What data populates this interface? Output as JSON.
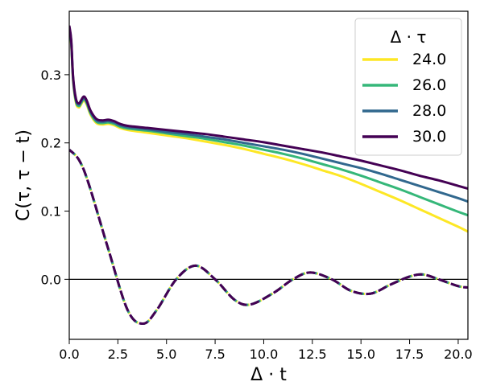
{
  "chart_data": {
    "type": "line",
    "xlabel": "Δ · t",
    "ylabel": "C(τ, τ − t)",
    "xlim": [
      0,
      20.5
    ],
    "ylim": [
      -0.088,
      0.393
    ],
    "xticks": [
      0.0,
      2.5,
      5.0,
      7.5,
      10.0,
      12.5,
      15.0,
      17.5,
      20.0
    ],
    "yticks": [
      0.0,
      0.1,
      0.2,
      0.3
    ],
    "xtick_labels": [
      "0.0",
      "2.5",
      "5.0",
      "7.5",
      "10.0",
      "12.5",
      "15.0",
      "17.5",
      "20.0"
    ],
    "ytick_labels": [
      "0.0",
      "0.1",
      "0.2",
      "0.3"
    ],
    "hline": 0,
    "legend": {
      "title": "Δ · τ",
      "position": "top-right"
    },
    "series": [
      {
        "name": "24.0",
        "color": "#fde725",
        "solid": {
          "x": [
            0,
            0.1,
            0.2,
            0.35,
            0.5,
            0.6,
            0.75,
            0.9,
            1.1,
            1.4,
            1.7,
            2.0,
            2.3,
            2.6,
            3.0,
            4.0,
            5.0,
            6.0,
            7.0,
            8.0,
            9.0,
            10.0,
            11.0,
            12.0,
            13.0,
            14.0,
            15.0,
            16.0,
            17.0,
            18.0,
            19.0,
            20.0,
            20.5
          ],
          "y": [
            0.365,
            0.345,
            0.29,
            0.258,
            0.252,
            0.256,
            0.262,
            0.256,
            0.241,
            0.229,
            0.227,
            0.228,
            0.226,
            0.222,
            0.219,
            0.215,
            0.211,
            0.207,
            0.202,
            0.197,
            0.191,
            0.184,
            0.177,
            0.169,
            0.16,
            0.151,
            0.14,
            0.128,
            0.116,
            0.103,
            0.09,
            0.077,
            0.07
          ]
        },
        "dashed": {
          "x": [
            0,
            0.5,
            1.0,
            2.0,
            3.0,
            3.8,
            4.5,
            5.5,
            6.5,
            7.5,
            8.5,
            9.3,
            10.5,
            11.5,
            12.4,
            13.5,
            14.5,
            15.5,
            16.5,
            17.5,
            18.2,
            19.0,
            20.0,
            20.5
          ],
          "y": [
            0.19,
            0.175,
            0.14,
            0.045,
            -0.045,
            -0.065,
            -0.045,
            0.0,
            0.02,
            0.0,
            -0.03,
            -0.037,
            -0.02,
            0.0,
            0.01,
            0.0,
            -0.017,
            -0.021,
            -0.008,
            0.004,
            0.007,
            0.0,
            -0.01,
            -0.012
          ]
        }
      },
      {
        "name": "26.0",
        "color": "#35b779",
        "solid": {
          "x": [
            0,
            0.1,
            0.2,
            0.35,
            0.5,
            0.6,
            0.75,
            0.9,
            1.1,
            1.4,
            1.7,
            2.0,
            2.3,
            2.6,
            3.0,
            4.0,
            5.0,
            6.0,
            7.0,
            8.0,
            9.0,
            10.0,
            11.0,
            12.0,
            13.0,
            14.0,
            15.0,
            16.0,
            17.0,
            18.0,
            19.0,
            20.0,
            20.5
          ],
          "y": [
            0.368,
            0.347,
            0.292,
            0.26,
            0.254,
            0.258,
            0.264,
            0.258,
            0.243,
            0.231,
            0.229,
            0.23,
            0.228,
            0.224,
            0.221,
            0.218,
            0.214,
            0.21,
            0.206,
            0.201,
            0.196,
            0.19,
            0.184,
            0.177,
            0.169,
            0.161,
            0.152,
            0.142,
            0.132,
            0.121,
            0.11,
            0.099,
            0.094
          ]
        },
        "dashed": {
          "x": [
            0,
            0.5,
            1.0,
            2.0,
            3.0,
            3.8,
            4.5,
            5.5,
            6.5,
            7.5,
            8.5,
            9.3,
            10.5,
            11.5,
            12.4,
            13.5,
            14.5,
            15.5,
            16.5,
            17.5,
            18.2,
            19.0,
            20.0,
            20.5
          ],
          "y": [
            0.19,
            0.175,
            0.14,
            0.045,
            -0.045,
            -0.065,
            -0.045,
            0.0,
            0.02,
            0.0,
            -0.03,
            -0.037,
            -0.02,
            0.0,
            0.01,
            0.0,
            -0.017,
            -0.021,
            -0.008,
            0.004,
            0.007,
            0.0,
            -0.01,
            -0.012
          ]
        }
      },
      {
        "name": "28.0",
        "color": "#31688e",
        "solid": {
          "x": [
            0,
            0.1,
            0.2,
            0.35,
            0.5,
            0.6,
            0.75,
            0.9,
            1.1,
            1.4,
            1.7,
            2.0,
            2.3,
            2.6,
            3.0,
            4.0,
            5.0,
            6.0,
            7.0,
            8.0,
            9.0,
            10.0,
            11.0,
            12.0,
            13.0,
            14.0,
            15.0,
            16.0,
            17.0,
            18.0,
            19.0,
            20.0,
            20.5
          ],
          "y": [
            0.37,
            0.349,
            0.294,
            0.262,
            0.256,
            0.26,
            0.266,
            0.26,
            0.245,
            0.233,
            0.231,
            0.232,
            0.23,
            0.226,
            0.223,
            0.22,
            0.216,
            0.213,
            0.209,
            0.205,
            0.2,
            0.195,
            0.19,
            0.184,
            0.177,
            0.17,
            0.163,
            0.155,
            0.146,
            0.137,
            0.128,
            0.119,
            0.114
          ]
        },
        "dashed": {
          "x": [
            0,
            0.5,
            1.0,
            2.0,
            3.0,
            3.8,
            4.5,
            5.5,
            6.5,
            7.5,
            8.5,
            9.3,
            10.5,
            11.5,
            12.4,
            13.5,
            14.5,
            15.5,
            16.5,
            17.5,
            18.2,
            19.0,
            20.0,
            20.5
          ],
          "y": [
            0.19,
            0.175,
            0.14,
            0.045,
            -0.045,
            -0.065,
            -0.045,
            0.0,
            0.02,
            0.0,
            -0.03,
            -0.037,
            -0.02,
            0.0,
            0.01,
            0.0,
            -0.017,
            -0.021,
            -0.008,
            0.004,
            0.007,
            0.0,
            -0.01,
            -0.012
          ]
        }
      },
      {
        "name": "30.0",
        "color": "#440154",
        "solid": {
          "x": [
            0,
            0.1,
            0.2,
            0.35,
            0.5,
            0.6,
            0.75,
            0.9,
            1.1,
            1.4,
            1.7,
            2.0,
            2.3,
            2.6,
            3.0,
            4.0,
            5.0,
            6.0,
            7.0,
            8.0,
            9.0,
            10.0,
            11.0,
            12.0,
            13.0,
            14.0,
            15.0,
            16.0,
            17.0,
            18.0,
            19.0,
            20.0,
            20.5
          ],
          "y": [
            0.372,
            0.351,
            0.296,
            0.264,
            0.258,
            0.262,
            0.268,
            0.262,
            0.247,
            0.235,
            0.233,
            0.234,
            0.232,
            0.228,
            0.225,
            0.222,
            0.219,
            0.216,
            0.213,
            0.209,
            0.205,
            0.201,
            0.196,
            0.191,
            0.186,
            0.18,
            0.174,
            0.167,
            0.16,
            0.152,
            0.145,
            0.137,
            0.133
          ]
        },
        "dashed": {
          "x": [
            0,
            0.5,
            1.0,
            2.0,
            3.0,
            3.8,
            4.5,
            5.5,
            6.5,
            7.5,
            8.5,
            9.3,
            10.5,
            11.5,
            12.4,
            13.5,
            14.5,
            15.5,
            16.5,
            17.5,
            18.2,
            19.0,
            20.0,
            20.5
          ],
          "y": [
            0.19,
            0.175,
            0.14,
            0.045,
            -0.045,
            -0.065,
            -0.045,
            0.0,
            0.02,
            0.0,
            -0.03,
            -0.037,
            -0.02,
            0.0,
            0.01,
            0.0,
            -0.017,
            -0.021,
            -0.008,
            0.004,
            0.007,
            0.0,
            -0.01,
            -0.012
          ]
        }
      }
    ]
  }
}
